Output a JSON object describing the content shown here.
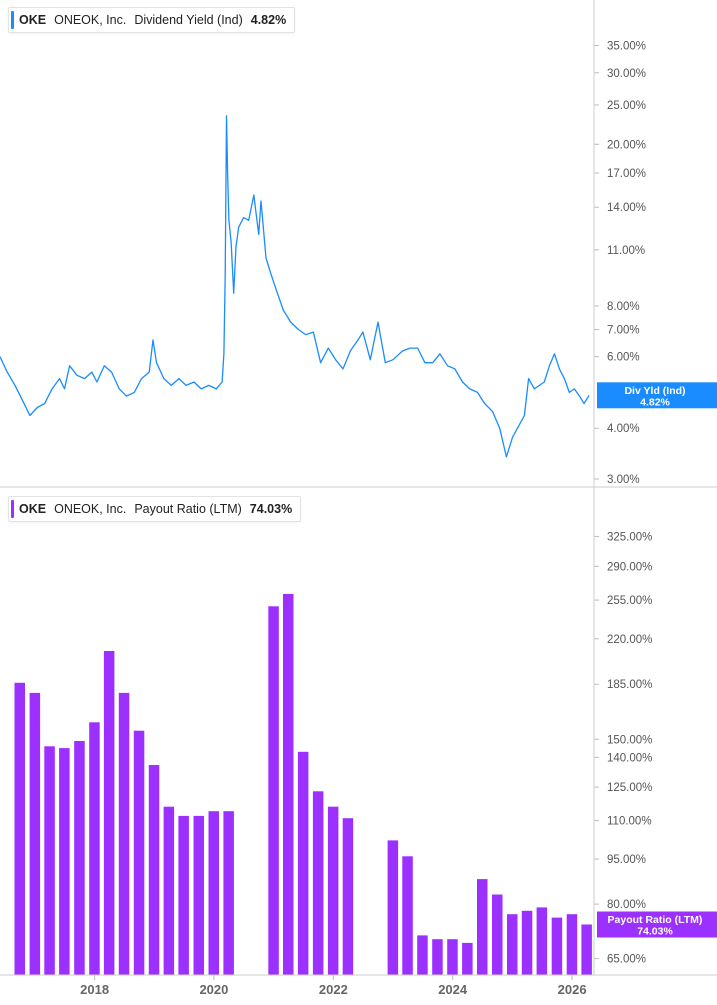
{
  "chart_data": [
    {
      "type": "line",
      "legend": {
        "ticker": "OKE",
        "company": "ONEOK, Inc.",
        "metric": "Dividend Yield (Ind)",
        "value": "4.82%"
      },
      "y_scale": "log",
      "ylim": [
        3.0,
        40.0
      ],
      "yticks": [
        {
          "v": 35,
          "label": "35.00%"
        },
        {
          "v": 30,
          "label": "30.00%"
        },
        {
          "v": 25,
          "label": "25.00%"
        },
        {
          "v": 20,
          "label": "20.00%"
        },
        {
          "v": 17,
          "label": "17.00%"
        },
        {
          "v": 14,
          "label": "14.00%"
        },
        {
          "v": 11,
          "label": "11.00%"
        },
        {
          "v": 8,
          "label": "8.00%"
        },
        {
          "v": 7,
          "label": "7.00%"
        },
        {
          "v": 6,
          "label": "6.00%"
        },
        {
          "v": 4,
          "label": "4.00%"
        },
        {
          "v": 3,
          "label": "3.00%"
        }
      ],
      "end_label": {
        "title": "Div Yld (Ind)",
        "value": "4.82%",
        "y": 4.82
      },
      "series": [
        {
          "color": "#1a8cff",
          "points": [
            [
              "2016-06-01",
              6.0
            ],
            [
              "2016-07-15",
              5.5
            ],
            [
              "2016-09-01",
              5.1
            ],
            [
              "2016-10-15",
              4.7
            ],
            [
              "2016-12-01",
              4.3
            ],
            [
              "2017-01-15",
              4.5
            ],
            [
              "2017-03-01",
              4.6
            ],
            [
              "2017-04-15",
              5.0
            ],
            [
              "2017-06-01",
              5.3
            ],
            [
              "2017-07-01",
              5.0
            ],
            [
              "2017-08-01",
              5.7
            ],
            [
              "2017-09-15",
              5.4
            ],
            [
              "2017-11-01",
              5.3
            ],
            [
              "2017-12-15",
              5.5
            ],
            [
              "2018-01-15",
              5.2
            ],
            [
              "2018-03-01",
              5.7
            ],
            [
              "2018-04-15",
              5.5
            ],
            [
              "2018-06-01",
              5.0
            ],
            [
              "2018-07-15",
              4.8
            ],
            [
              "2018-09-01",
              4.9
            ],
            [
              "2018-10-15",
              5.3
            ],
            [
              "2018-12-01",
              5.5
            ],
            [
              "2018-12-24",
              6.6
            ],
            [
              "2019-01-15",
              5.8
            ],
            [
              "2019-03-01",
              5.3
            ],
            [
              "2019-04-15",
              5.1
            ],
            [
              "2019-06-01",
              5.3
            ],
            [
              "2019-07-15",
              5.1
            ],
            [
              "2019-09-01",
              5.2
            ],
            [
              "2019-10-15",
              5.0
            ],
            [
              "2019-12-01",
              5.1
            ],
            [
              "2020-01-15",
              5.0
            ],
            [
              "2020-02-20",
              5.2
            ],
            [
              "2020-03-02",
              6.1
            ],
            [
              "2020-03-10",
              9.5
            ],
            [
              "2020-03-18",
              23.5
            ],
            [
              "2020-03-25",
              17.0
            ],
            [
              "2020-04-02",
              13.0
            ],
            [
              "2020-04-15",
              11.5
            ],
            [
              "2020-05-01",
              8.6
            ],
            [
              "2020-05-15",
              11.2
            ],
            [
              "2020-06-01",
              12.5
            ],
            [
              "2020-07-01",
              13.2
            ],
            [
              "2020-08-01",
              13.0
            ],
            [
              "2020-09-01",
              15.0
            ],
            [
              "2020-10-01",
              12.0
            ],
            [
              "2020-10-15",
              14.5
            ],
            [
              "2020-11-15",
              10.5
            ],
            [
              "2020-12-15",
              9.6
            ],
            [
              "2021-01-15",
              8.8
            ],
            [
              "2021-03-01",
              7.8
            ],
            [
              "2021-04-15",
              7.3
            ],
            [
              "2021-06-01",
              7.0
            ],
            [
              "2021-07-15",
              6.8
            ],
            [
              "2021-09-01",
              6.9
            ],
            [
              "2021-10-15",
              5.8
            ],
            [
              "2021-12-01",
              6.3
            ],
            [
              "2022-01-15",
              5.9
            ],
            [
              "2022-03-01",
              5.6
            ],
            [
              "2022-04-15",
              6.2
            ],
            [
              "2022-06-01",
              6.6
            ],
            [
              "2022-07-01",
              6.9
            ],
            [
              "2022-08-15",
              5.9
            ],
            [
              "2022-10-01",
              7.3
            ],
            [
              "2022-11-15",
              5.8
            ],
            [
              "2023-01-01",
              5.9
            ],
            [
              "2023-03-01",
              6.2
            ],
            [
              "2023-04-15",
              6.3
            ],
            [
              "2023-06-01",
              6.3
            ],
            [
              "2023-07-15",
              5.8
            ],
            [
              "2023-09-01",
              5.8
            ],
            [
              "2023-10-15",
              6.1
            ],
            [
              "2023-12-01",
              5.7
            ],
            [
              "2024-01-15",
              5.6
            ],
            [
              "2024-03-01",
              5.2
            ],
            [
              "2024-04-15",
              5.0
            ],
            [
              "2024-06-01",
              4.9
            ],
            [
              "2024-07-15",
              4.6
            ],
            [
              "2024-09-01",
              4.4
            ],
            [
              "2024-10-15",
              4.0
            ],
            [
              "2024-11-25",
              3.4
            ],
            [
              "2025-01-01",
              3.8
            ],
            [
              "2025-02-15",
              4.1
            ],
            [
              "2025-03-15",
              4.3
            ],
            [
              "2025-04-10",
              5.3
            ],
            [
              "2025-05-15",
              5.0
            ],
            [
              "2025-06-15",
              5.1
            ],
            [
              "2025-07-15",
              5.2
            ],
            [
              "2025-08-15",
              5.7
            ],
            [
              "2025-09-15",
              6.1
            ],
            [
              "2025-10-15",
              5.6
            ],
            [
              "2025-11-15",
              5.3
            ],
            [
              "2025-12-15",
              4.9
            ],
            [
              "2026-01-15",
              5.0
            ],
            [
              "2026-02-15",
              4.8
            ],
            [
              "2026-03-15",
              4.6
            ],
            [
              "2026-04-15",
              4.82
            ]
          ]
        }
      ]
    },
    {
      "type": "bar",
      "legend": {
        "ticker": "OKE",
        "company": "ONEOK, Inc.",
        "metric": "Payout Ratio (LTM)",
        "value": "74.03%"
      },
      "y_scale": "log",
      "ylim": [
        62.0,
        350.0
      ],
      "yticks": [
        {
          "v": 325,
          "label": "325.00%"
        },
        {
          "v": 290,
          "label": "290.00%"
        },
        {
          "v": 255,
          "label": "255.00%"
        },
        {
          "v": 220,
          "label": "220.00%"
        },
        {
          "v": 185,
          "label": "185.00%"
        },
        {
          "v": 150,
          "label": "150.00%"
        },
        {
          "v": 140,
          "label": "140.00%"
        },
        {
          "v": 125,
          "label": "125.00%"
        },
        {
          "v": 110,
          "label": "110.00%"
        },
        {
          "v": 95,
          "label": "95.00%"
        },
        {
          "v": 80,
          "label": "80.00%"
        },
        {
          "v": 65,
          "label": "65.00%"
        }
      ],
      "end_label": {
        "title": "Payout Ratio (LTM)",
        "value": "74.03%",
        "y": 74.03
      },
      "series": [
        {
          "color": "#9b30ff",
          "points": [
            [
              "2016-09-30",
              186
            ],
            [
              "2016-12-31",
              179
            ],
            [
              "2017-03-31",
              146
            ],
            [
              "2017-06-30",
              145
            ],
            [
              "2017-09-30",
              149
            ],
            [
              "2017-12-31",
              160
            ],
            [
              "2018-03-31",
              210
            ],
            [
              "2018-06-30",
              179
            ],
            [
              "2018-09-30",
              155
            ],
            [
              "2018-12-31",
              136
            ],
            [
              "2019-03-31",
              116
            ],
            [
              "2019-06-30",
              112
            ],
            [
              "2019-09-30",
              112
            ],
            [
              "2019-12-31",
              114
            ],
            [
              "2020-03-31",
              114
            ],
            [
              "2020-12-31",
              249
            ],
            [
              "2021-03-31",
              261
            ],
            [
              "2021-06-30",
              143
            ],
            [
              "2021-09-30",
              123
            ],
            [
              "2021-12-31",
              116
            ],
            [
              "2022-03-31",
              111
            ],
            [
              "2022-12-31",
              102
            ],
            [
              "2023-03-31",
              96
            ],
            [
              "2023-06-30",
              71
            ],
            [
              "2023-09-30",
              70
            ],
            [
              "2023-12-31",
              70
            ],
            [
              "2024-03-31",
              69
            ],
            [
              "2024-06-30",
              88
            ],
            [
              "2024-09-30",
              83
            ],
            [
              "2024-12-31",
              77
            ],
            [
              "2025-03-31",
              78
            ],
            [
              "2025-06-30",
              79
            ],
            [
              "2025-09-30",
              76
            ],
            [
              "2025-12-31",
              77
            ],
            [
              "2026-03-31",
              74.03
            ]
          ]
        }
      ]
    }
  ],
  "x_axis": {
    "range": [
      "2016-06-01",
      "2026-05-15"
    ],
    "ticks": [
      {
        "date": "2018-01-01",
        "label": "2018"
      },
      {
        "date": "2020-01-01",
        "label": "2020"
      },
      {
        "date": "2022-01-01",
        "label": "2022"
      },
      {
        "date": "2024-01-01",
        "label": "2024"
      },
      {
        "date": "2026-01-01",
        "label": "2026"
      }
    ]
  }
}
